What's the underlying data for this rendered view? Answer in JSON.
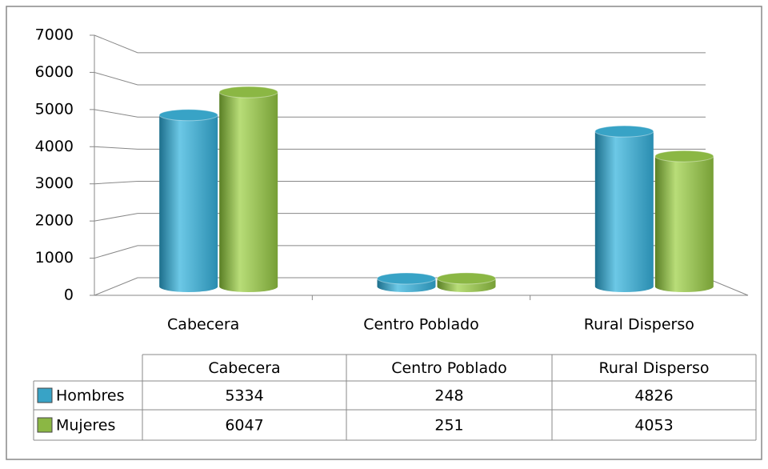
{
  "chart_data": {
    "type": "bar",
    "categories": [
      "Cabecera",
      "Centro Poblado",
      "Rural Disperso"
    ],
    "series": [
      {
        "name": "Hombres",
        "color": "#38a3c6",
        "values": [
          5334,
          248,
          4826
        ]
      },
      {
        "name": "Mujeres",
        "color": "#8bb744",
        "values": [
          6047,
          251,
          4053
        ]
      }
    ],
    "ylim": [
      0,
      7000
    ],
    "yticks": [
      0,
      1000,
      2000,
      3000,
      4000,
      5000,
      6000,
      7000
    ],
    "grid": true
  }
}
